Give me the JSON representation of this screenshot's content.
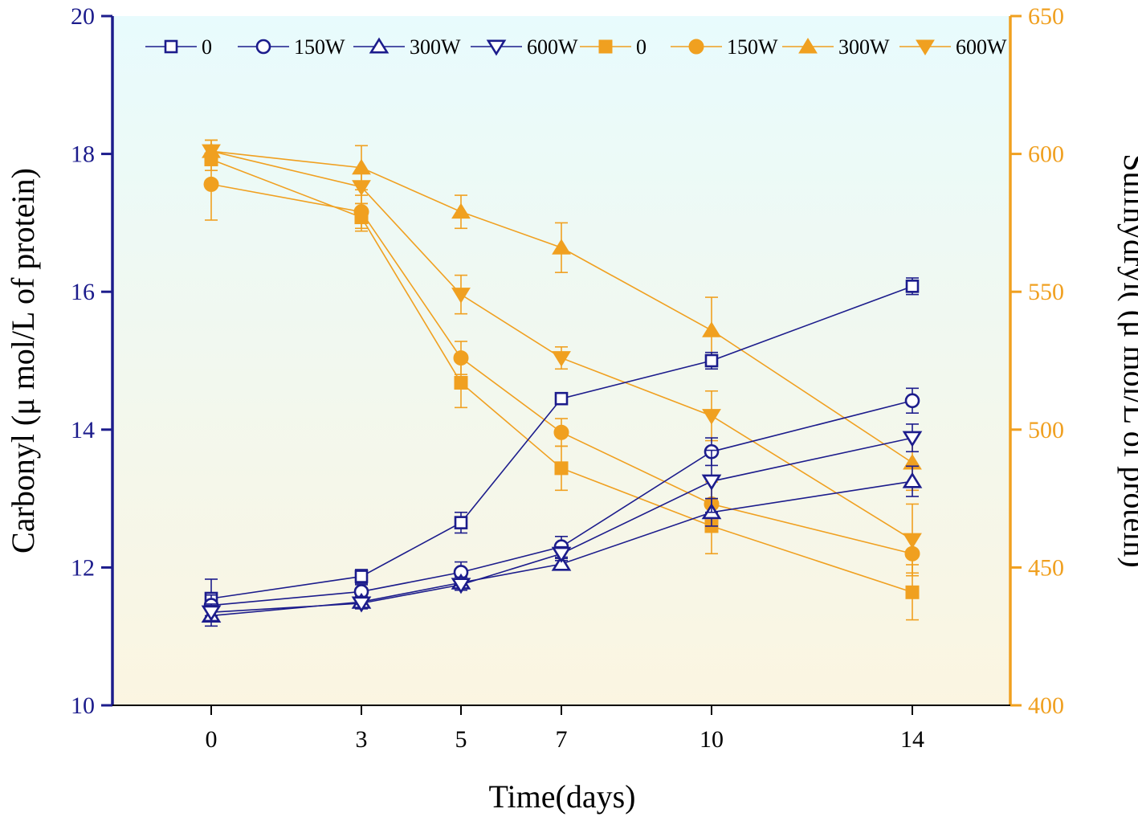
{
  "chart_data": {
    "type": "line",
    "title": "",
    "xlabel": "Time(days)",
    "ylabel_left": "Carbonyl (μ mol/L of protein)",
    "ylabel_right": "Sulfhydryl( (μ mol/L of protein)",
    "x": [
      0,
      3,
      5,
      7,
      10,
      14
    ],
    "x_tick_labels": [
      "0",
      "3",
      "5",
      "7",
      "10",
      "14"
    ],
    "ylim_left": [
      10,
      20
    ],
    "yticks_left": [
      "10",
      "12",
      "14",
      "16",
      "18",
      "20"
    ],
    "ylim_right": [
      400,
      650
    ],
    "yticks_right": [
      "400",
      "450",
      "500",
      "550",
      "600",
      "650"
    ],
    "colors": {
      "left_axis": "#1c1c8c",
      "right_axis": "#f0a020",
      "background_top": "#e8fbfd",
      "background_bottom": "#fbf5e1"
    },
    "series": [
      {
        "name": "0",
        "axis": "left",
        "marker": "square-open",
        "values": [
          11.55,
          11.87,
          12.65,
          14.45,
          15.0,
          16.08
        ],
        "errors": [
          0.28,
          0.1,
          0.15,
          0.08,
          0.12,
          0.12
        ]
      },
      {
        "name": "150W",
        "axis": "left",
        "marker": "circle-open",
        "values": [
          11.45,
          11.65,
          11.93,
          12.3,
          13.68,
          14.42
        ],
        "errors": [
          0.15,
          0.1,
          0.15,
          0.15,
          0.2,
          0.18
        ]
      },
      {
        "name": "300W",
        "axis": "left",
        "marker": "triangle-up-open",
        "values": [
          11.3,
          11.5,
          11.78,
          12.05,
          12.8,
          13.25
        ],
        "errors": [
          0.15,
          0.08,
          0.08,
          0.08,
          0.2,
          0.22
        ]
      },
      {
        "name": "600W",
        "axis": "left",
        "marker": "triangle-down-open",
        "values": [
          11.35,
          11.48,
          11.75,
          12.2,
          13.25,
          13.88
        ],
        "errors": [
          0.12,
          0.08,
          0.08,
          0.1,
          0.45,
          0.2
        ]
      },
      {
        "name": "0",
        "axis": "right",
        "marker": "square-filled",
        "values": [
          598,
          577,
          517,
          486,
          465,
          441
        ],
        "errors": [
          4,
          5,
          9,
          8,
          10,
          10
        ]
      },
      {
        "name": "150W",
        "axis": "right",
        "marker": "circle-filled",
        "values": [
          589,
          579,
          526,
          499,
          473,
          455
        ],
        "errors": [
          13,
          6,
          6,
          5,
          8,
          7
        ]
      },
      {
        "name": "300W",
        "axis": "right",
        "marker": "triangle-up-filled",
        "values": [
          601,
          595,
          579,
          566,
          536,
          488
        ],
        "errors": [
          4,
          8,
          6,
          9,
          12,
          10
        ]
      },
      {
        "name": "600W",
        "axis": "right",
        "marker": "triangle-down-filled",
        "values": [
          601,
          588,
          549,
          526,
          505,
          460
        ],
        "errors": [
          4,
          6,
          7,
          4,
          9,
          13
        ]
      }
    ]
  }
}
